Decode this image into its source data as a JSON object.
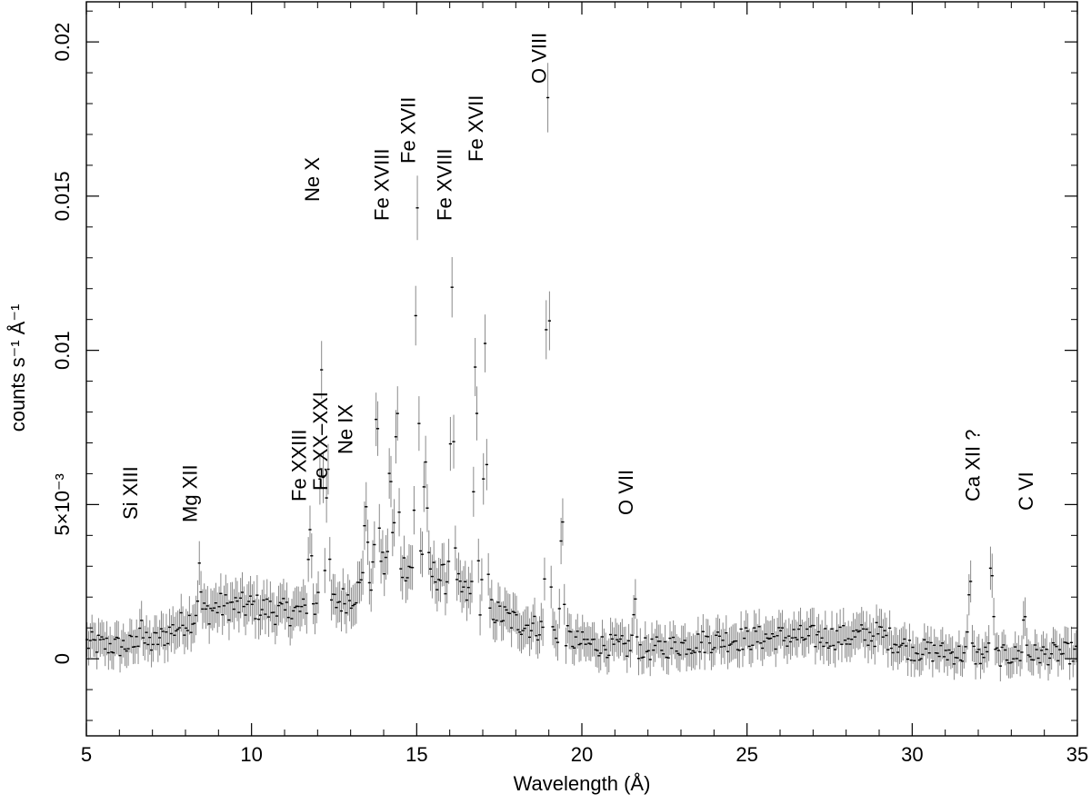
{
  "chart_data": {
    "type": "scatter",
    "xlabel": "Wavelength (Å)",
    "ylabel": "counts s⁻¹ Å⁻¹",
    "xlim": [
      5,
      35
    ],
    "ylim": [
      -0.0025,
      0.0213
    ],
    "grid": false,
    "legend": "none",
    "x_ticks": [
      {
        "value": 5,
        "label": "5"
      },
      {
        "value": 10,
        "label": "10"
      },
      {
        "value": 15,
        "label": "15"
      },
      {
        "value": 20,
        "label": "20"
      },
      {
        "value": 25,
        "label": "25"
      },
      {
        "value": 30,
        "label": "30"
      },
      {
        "value": 35,
        "label": "35"
      }
    ],
    "y_ticks": [
      {
        "value": 0,
        "label": "0"
      },
      {
        "value": 0.005,
        "label": "5×10⁻³"
      },
      {
        "value": 0.01,
        "label": "0.01"
      },
      {
        "value": 0.015,
        "label": "0.015"
      },
      {
        "value": 0.02,
        "label": "0.02"
      }
    ],
    "line_labels": [
      {
        "text": "Si XIII",
        "wavelength": 6.6
      },
      {
        "text": "Mg XII",
        "wavelength": 8.4
      },
      {
        "text": "Fe XXIII",
        "wavelength": 11.7
      },
      {
        "text": "Fe XX–XXI",
        "wavelength": 12.35
      },
      {
        "text": "Ne IX",
        "wavelength": 13.1
      },
      {
        "text": "Ne X",
        "wavelength": 12.1
      },
      {
        "text": "Fe XVIII",
        "wavelength": 14.2
      },
      {
        "text": "Fe XVII",
        "wavelength": 15.01
      },
      {
        "text": "Fe XVIII",
        "wavelength": 16.1
      },
      {
        "text": "Fe XVII",
        "wavelength": 17.05
      },
      {
        "text": "O VIII",
        "wavelength": 18.97
      },
      {
        "text": "O VII",
        "wavelength": 21.6
      },
      {
        "text": "Ca XII ?",
        "wavelength": 32.1
      },
      {
        "text": "C VI",
        "wavelength": 33.7
      }
    ],
    "features": [
      {
        "x": 6.65,
        "y": 0.0015
      },
      {
        "x": 8.42,
        "y": 0.0028
      },
      {
        "x": 11.77,
        "y": 0.0045
      },
      {
        "x": 12.12,
        "y": 0.0097
      },
      {
        "x": 12.3,
        "y": 0.006
      },
      {
        "x": 13.45,
        "y": 0.0052
      },
      {
        "x": 13.8,
        "y": 0.0083
      },
      {
        "x": 14.2,
        "y": 0.0063
      },
      {
        "x": 14.4,
        "y": 0.0082
      },
      {
        "x": 15.01,
        "y": 0.0148
      },
      {
        "x": 15.26,
        "y": 0.0067
      },
      {
        "x": 16.07,
        "y": 0.0115
      },
      {
        "x": 16.78,
        "y": 0.0102
      },
      {
        "x": 17.07,
        "y": 0.0098
      },
      {
        "x": 18.97,
        "y": 0.0188
      },
      {
        "x": 19.4,
        "y": 0.0045
      },
      {
        "x": 21.6,
        "y": 0.0017
      },
      {
        "x": 31.75,
        "y": 0.0024
      },
      {
        "x": 32.4,
        "y": 0.0032
      },
      {
        "x": 33.4,
        "y": 0.0014
      }
    ],
    "continuum": [
      {
        "x": 5.0,
        "y": 0.0005
      },
      {
        "x": 6.0,
        "y": 0.0004
      },
      {
        "x": 7.0,
        "y": 0.0005
      },
      {
        "x": 8.0,
        "y": 0.0012
      },
      {
        "x": 9.0,
        "y": 0.0017
      },
      {
        "x": 10.0,
        "y": 0.0017
      },
      {
        "x": 11.0,
        "y": 0.0015
      },
      {
        "x": 12.0,
        "y": 0.0016
      },
      {
        "x": 13.0,
        "y": 0.002
      },
      {
        "x": 14.0,
        "y": 0.003
      },
      {
        "x": 15.0,
        "y": 0.003
      },
      {
        "x": 16.0,
        "y": 0.0025
      },
      {
        "x": 17.0,
        "y": 0.0017
      },
      {
        "x": 18.0,
        "y": 0.0012
      },
      {
        "x": 19.0,
        "y": 0.0009
      },
      {
        "x": 20.0,
        "y": 0.0005
      },
      {
        "x": 22.0,
        "y": 0.0003
      },
      {
        "x": 24.0,
        "y": 0.0006
      },
      {
        "x": 26.0,
        "y": 0.0007
      },
      {
        "x": 28.0,
        "y": 0.0007
      },
      {
        "x": 29.0,
        "y": 0.0008
      },
      {
        "x": 30.0,
        "y": 0.0003
      },
      {
        "x": 32.0,
        "y": 0.0001
      },
      {
        "x": 33.0,
        "y": 0.0001
      },
      {
        "x": 35.0,
        "y": 0.0002
      }
    ],
    "colors": {
      "points": "#000000",
      "error_bars": "#8a8a8a",
      "frame": "#000000"
    }
  }
}
